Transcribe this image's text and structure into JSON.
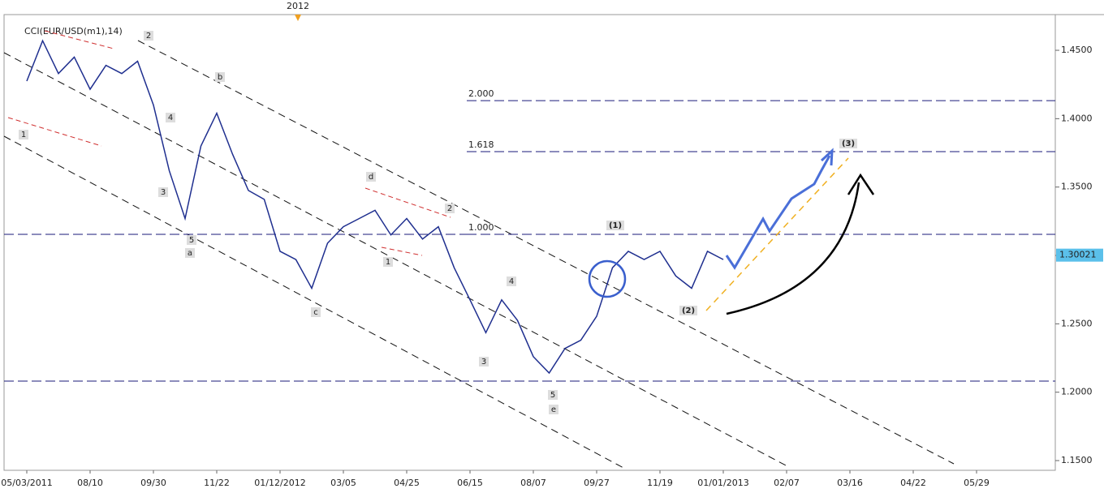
{
  "chart_data": {
    "type": "line",
    "indicator": "CCI(EUR/USD(m1),14)",
    "year_marker": "2012",
    "categories": [
      "05/03/2011",
      null,
      null,
      null,
      "08/10",
      null,
      null,
      null,
      "09/30",
      null,
      null,
      null,
      "11/22",
      null,
      null,
      null,
      "01/12/2012",
      null,
      null,
      null,
      "03/05",
      null,
      null,
      null,
      "04/25",
      null,
      null,
      null,
      "06/15",
      null,
      null,
      null,
      "08/07",
      null,
      null,
      null,
      "09/27",
      null,
      null,
      null,
      "11/19",
      null,
      null,
      null,
      "01/01/2013",
      null,
      null,
      null,
      "02/07",
      null,
      null,
      null,
      "03/16",
      null,
      null,
      null,
      "04/22",
      null,
      null,
      null,
      "05/29"
    ],
    "series": [
      {
        "name": "EUR/USD",
        "color": "#1f2f8f",
        "values": [
          1.4275,
          1.457,
          1.433,
          1.445,
          1.4215,
          1.439,
          1.433,
          1.442,
          1.41,
          1.362,
          1.327,
          1.38,
          1.404,
          1.374,
          1.3475,
          1.341,
          1.303,
          1.297,
          1.276,
          1.309,
          1.321,
          1.327,
          1.333,
          1.315,
          1.327,
          1.312,
          1.321,
          1.291,
          1.2675,
          1.2435,
          1.2675,
          1.2525,
          1.226,
          1.214,
          1.232,
          1.238,
          1.2555,
          1.291,
          1.303,
          1.297,
          1.303,
          1.285,
          1.276,
          1.303,
          1.297,
          null,
          null,
          null,
          null,
          null,
          null,
          null,
          null,
          null,
          null,
          null,
          null,
          null,
          null,
          null,
          null
        ]
      }
    ],
    "last_price": 1.30021,
    "ylim": [
      1.1429,
      1.4761
    ],
    "yticks": [
      {
        "value": 1.15,
        "label": "1.1500"
      },
      {
        "value": 1.2,
        "label": "1.2000"
      },
      {
        "value": 1.25,
        "label": "1.2500"
      },
      {
        "value": 1.3,
        "label": "1.3000"
      },
      {
        "value": 1.35,
        "label": "1.3500"
      },
      {
        "value": 1.4,
        "label": "1.4000"
      },
      {
        "value": 1.45,
        "label": "1.4500"
      }
    ],
    "levels": [
      1.4132,
      1.3759,
      1.3154,
      1.2081
    ],
    "level_labels": [
      "2.000",
      "1.618",
      "1.000",
      null
    ],
    "wave_labels": [
      "1",
      "2",
      "b",
      "4",
      "3",
      "5",
      "a",
      "c",
      "d",
      "1",
      "2",
      "4",
      "3",
      "5",
      "e",
      "(1)",
      "(2)",
      "(3)"
    ]
  }
}
